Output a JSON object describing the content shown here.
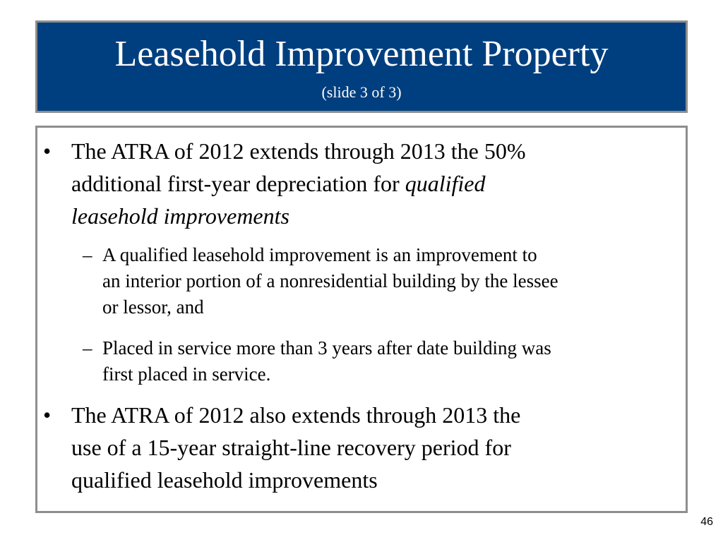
{
  "slide": {
    "title": "Leasehold Improvement Property",
    "subtitle": "(slide 3 of 3)",
    "page_number": "46",
    "colors": {
      "title_background": "#003f7f",
      "box_border": "#8e8e8e",
      "title_text": "#ffffff"
    }
  },
  "bullets": [
    {
      "marker": "•",
      "lines": [
        "The ATRA of 2012 extends through 2013 the 50%",
        "additional first-year depreciation for ",
        "qualified",
        "leasehold improvements"
      ]
    },
    {
      "marker": "•",
      "lines": [
        "The ATRA of 2012 also extends through 2013 the",
        "use of a 15-year straight-line recovery period for",
        "qualified leasehold improvements"
      ]
    }
  ],
  "sub_bullets": [
    {
      "marker": "–",
      "lines": [
        "A qualified leasehold improvement is an improvement to",
        "an interior portion of a nonresidential building by the lessee",
        "or lessor, and"
      ]
    },
    {
      "marker": "–",
      "lines": [
        "Placed in service more than 3 years after date building was",
        "first placed in service."
      ]
    }
  ]
}
